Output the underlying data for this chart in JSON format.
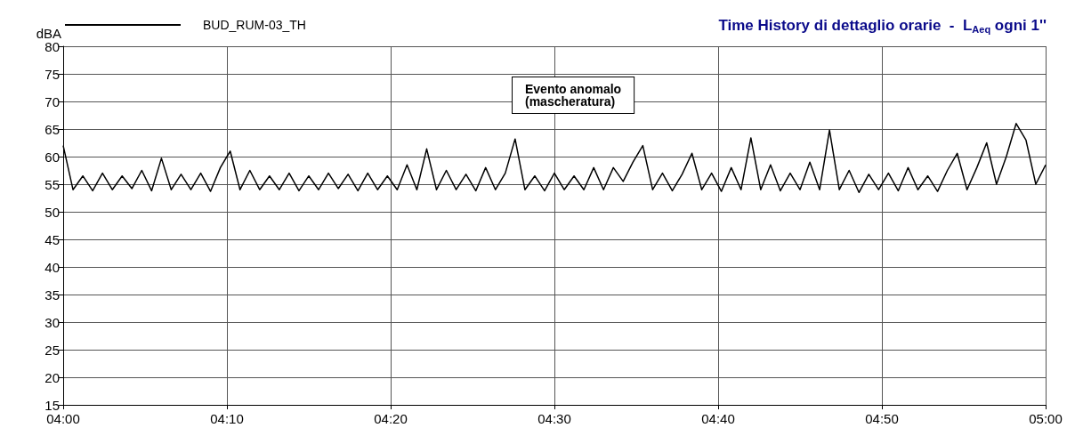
{
  "chart_data": {
    "type": "line",
    "title": "Time History di dettaglio orarie  -  L$_{Aeq}$ ogni 1''",
    "ylabel": "dBA",
    "annotations": [
      "Evento anomalo\n(mascheratura)"
    ],
    "x": [
      4,
      4.01,
      4.02,
      4.03,
      4.04,
      4.05,
      4.06,
      4.07,
      4.08,
      4.09,
      4.1,
      4.11,
      4.12,
      4.13,
      4.14,
      4.15,
      4.16,
      4.17,
      4.18,
      4.19,
      4.2,
      4.21,
      4.22,
      4.23,
      4.24,
      4.25,
      4.26,
      4.27,
      4.28,
      4.29,
      4.3,
      4.31,
      4.32,
      4.33,
      4.34,
      4.35,
      4.36,
      4.37,
      4.38,
      4.39,
      4.4,
      4.41,
      4.42,
      4.43,
      4.44,
      4.45,
      4.46,
      4.47,
      4.48,
      4.49,
      4.5,
      4.51,
      4.52,
      4.53,
      4.54,
      4.55,
      4.56,
      4.57,
      4.58,
      4.59,
      4.6,
      4.61,
      4.62,
      4.63,
      4.64,
      4.65,
      4.66,
      4.67,
      4.68,
      4.69,
      4.7,
      4.71,
      4.72,
      4.73,
      4.74,
      4.75,
      4.76,
      4.77,
      4.78,
      4.79,
      4.8,
      4.81,
      4.82,
      4.83,
      4.84,
      4.85,
      4.86,
      4.87,
      4.88,
      4.89,
      4.9,
      4.91,
      4.92,
      4.93,
      4.94,
      4.95,
      4.96,
      4.97,
      4.98,
      4.99,
      5
    ],
    "series": [
      {
        "name": "BUD_RUM-03_TH",
        "color": "#000000",
        "values": [
          62,
          54,
          56.5,
          53.8,
          57,
          54,
          56.5,
          54.2,
          57.5,
          53.8,
          59.7,
          54,
          56.8,
          54,
          57,
          53.7,
          58,
          61,
          54,
          57.5,
          54,
          56.5,
          54,
          57,
          53.8,
          56.5,
          54,
          57,
          54.2,
          56.8,
          53.8,
          57,
          54,
          56.5,
          54,
          58.5,
          54,
          61.4,
          54,
          57.5,
          54,
          56.8,
          53.8,
          58,
          54,
          57,
          63.2,
          54,
          56.5,
          53.8,
          57,
          54,
          56.5,
          54,
          58,
          54,
          58,
          55.5,
          59,
          62,
          54,
          57,
          53.8,
          56.8,
          60.6,
          54,
          57,
          53.7,
          58,
          54,
          63.4,
          54,
          58.5,
          53.8,
          57,
          54,
          59,
          54,
          64.8,
          54,
          57.5,
          53.5,
          56.8,
          54,
          57,
          53.8,
          58,
          54,
          56.5,
          53.7,
          57.5,
          60.6,
          54,
          58,
          62.5,
          55,
          60,
          66,
          63,
          55,
          58.5
        ]
      }
    ],
    "xlim": [
      4,
      5
    ],
    "xticks": [
      {
        "value": 4,
        "label": "04:00"
      },
      {
        "value": 4.1667,
        "label": "04:10"
      },
      {
        "value": 4.3333,
        "label": "04:20"
      },
      {
        "value": 4.5,
        "label": "04:30"
      },
      {
        "value": 4.6667,
        "label": "04:40"
      },
      {
        "value": 4.8333,
        "label": "04:50"
      },
      {
        "value": 5,
        "label": "05:00"
      }
    ],
    "ylim": [
      15,
      80
    ],
    "yticks": [
      15,
      20,
      25,
      30,
      35,
      40,
      45,
      50,
      55,
      60,
      65,
      70,
      75,
      80
    ],
    "grid": true,
    "legend": "top left",
    "line_style": "solid",
    "marker": "none"
  }
}
